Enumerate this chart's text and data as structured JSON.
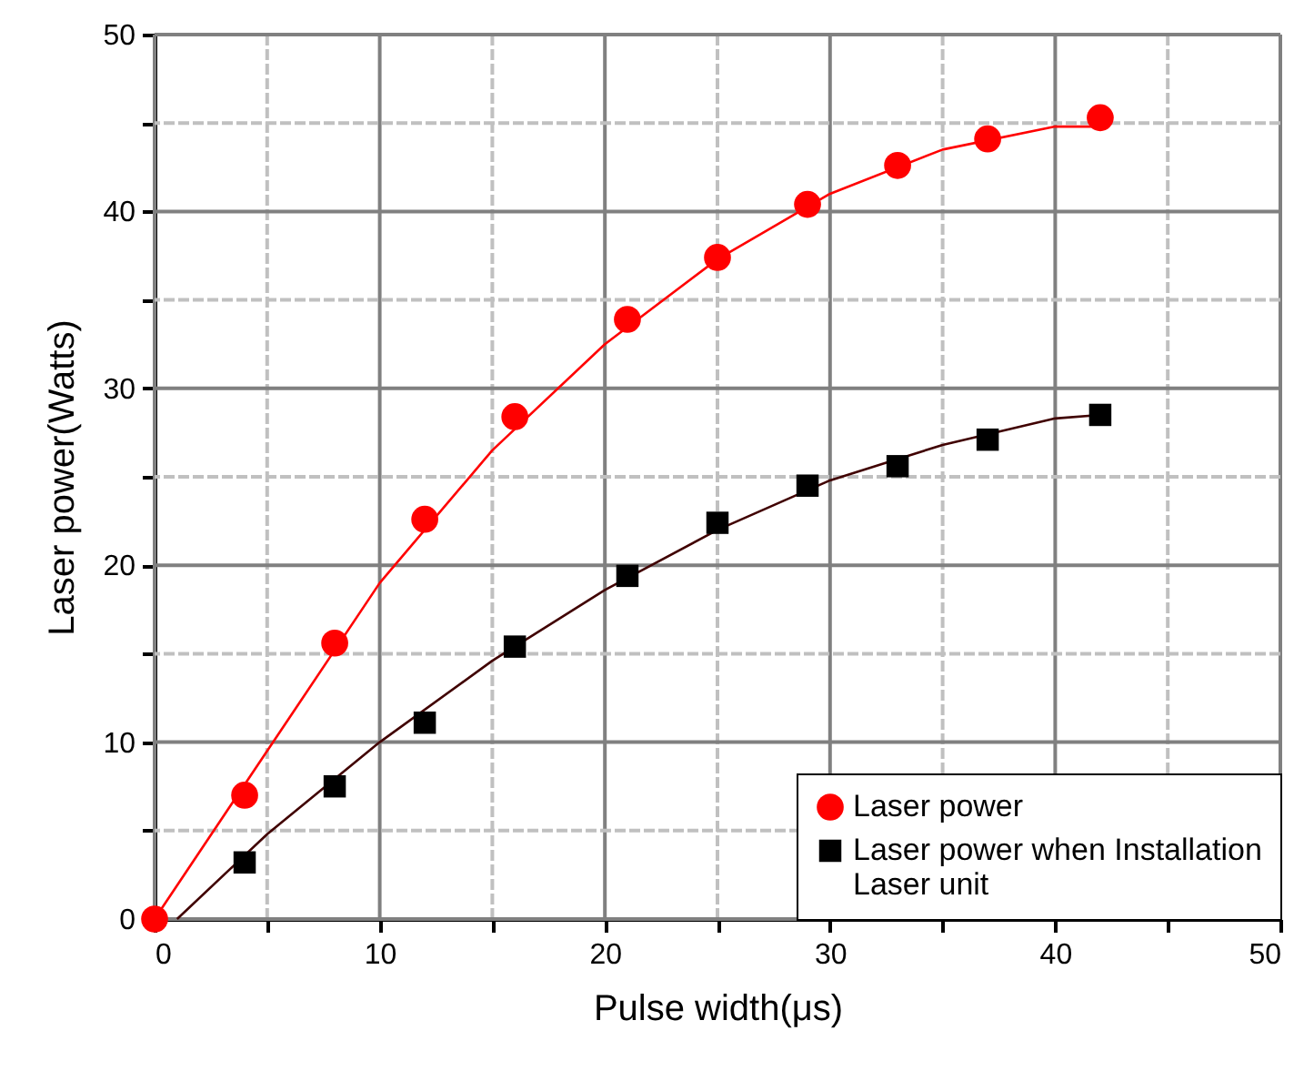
{
  "chart_data": {
    "type": "scatter",
    "xlabel": "Pulse width(μs)",
    "ylabel": "Laser power(Watts)",
    "xlim": [
      0,
      50
    ],
    "ylim": [
      0,
      50
    ],
    "xticks": [
      0,
      {
        "value": 5,
        "label": null
      },
      10,
      {
        "value": 15,
        "label": null
      },
      20,
      {
        "value": 25,
        "label": null
      },
      30,
      {
        "value": 35,
        "label": null
      },
      40,
      {
        "value": 45,
        "label": null
      },
      50
    ],
    "yticks": [
      0,
      {
        "value": 5,
        "label": null
      },
      10,
      {
        "value": 15,
        "label": null
      },
      20,
      {
        "value": 25,
        "label": null
      },
      30,
      {
        "value": 35,
        "label": null
      },
      40,
      {
        "value": 45,
        "label": null
      },
      50
    ],
    "grid": true,
    "legend": "bottom right",
    "series": [
      {
        "name": "Laser power",
        "color": "#ff0000",
        "marker": "circle",
        "x": [
          0,
          4,
          8,
          12,
          16,
          21,
          25,
          29,
          33,
          37,
          42
        ],
        "values": [
          0,
          7,
          15.6,
          22.6,
          28.4,
          33.9,
          37.4,
          40.4,
          42.6,
          44.1,
          45.3
        ]
      },
      {
        "name": "Laser power when Installation Laser unit",
        "color": "#000000",
        "marker": "square",
        "x": [
          4,
          8,
          12,
          16,
          21,
          25,
          29,
          33,
          37,
          42
        ],
        "values": [
          3.2,
          7.5,
          11.1,
          15.4,
          19.4,
          22.4,
          24.5,
          25.6,
          27.1,
          28.5
        ]
      },
      {
        "type": "line",
        "color": "#ff0000",
        "x": [
          0,
          5,
          10,
          15,
          20,
          25,
          30,
          35,
          40,
          42
        ],
        "values": [
          0,
          9.5,
          19,
          26.5,
          32.5,
          37.3,
          41,
          43.5,
          44.8,
          44.8
        ]
      },
      {
        "type": "line",
        "color": "#400000",
        "x": [
          1,
          5,
          10,
          15,
          20,
          25,
          30,
          35,
          40,
          42
        ],
        "values": [
          0,
          4.8,
          10,
          14.6,
          18.6,
          22,
          24.8,
          26.8,
          28.3,
          28.5
        ]
      }
    ]
  }
}
